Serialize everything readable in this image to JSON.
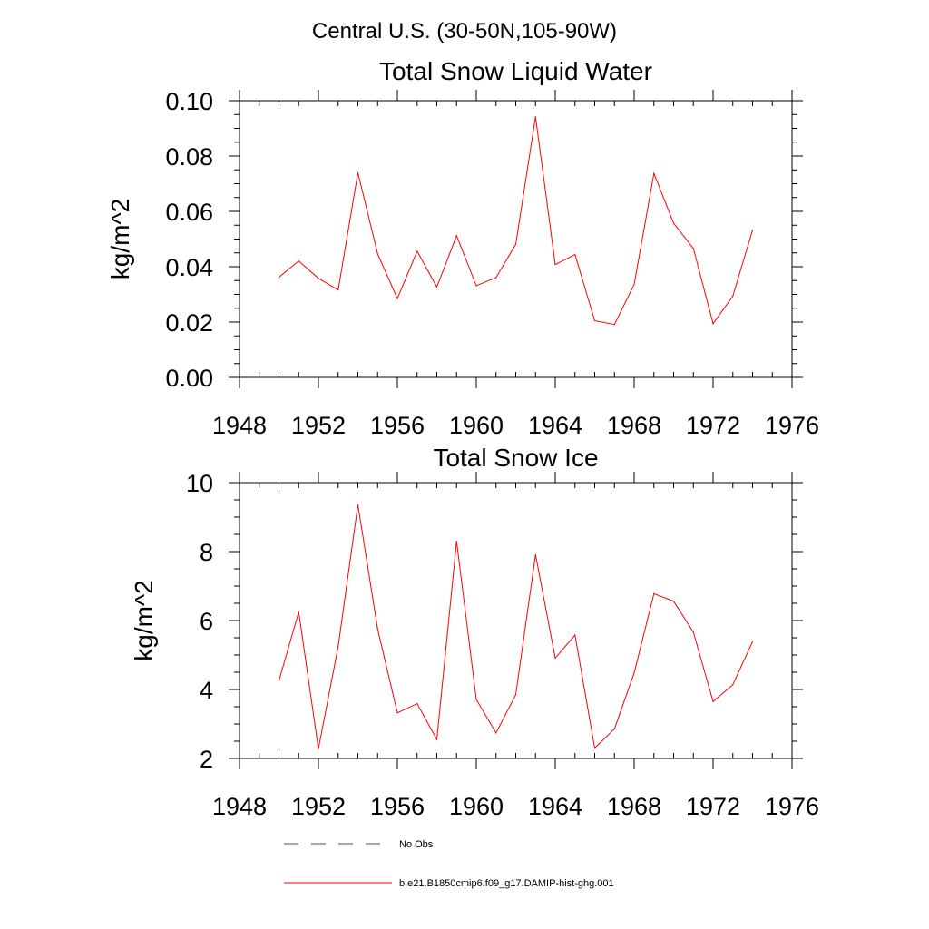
{
  "figure": {
    "main_title": "Central U.S. (30-50N,105-90W)"
  },
  "legend": {
    "items": [
      {
        "label": "No Obs",
        "style": "dashed",
        "color": "#4a4a7a"
      },
      {
        "label": "b.e21.B1850cmip6.f09_g17.DAMIP-hist-ghg.001",
        "style": "solid",
        "color": "#ff0000"
      }
    ]
  },
  "chart_data": [
    {
      "type": "line",
      "title": "Total Snow Liquid Water",
      "xlabel": "",
      "ylabel": "kg/m^2",
      "xlim": [
        1948,
        1976
      ],
      "ylim": [
        0.0,
        0.1
      ],
      "xticks": [
        1948,
        1952,
        1956,
        1960,
        1964,
        1968,
        1972,
        1976
      ],
      "xtick_labels": [
        "1948",
        "1952",
        "1956",
        "1960",
        "1964",
        "1968",
        "1972",
        "1976"
      ],
      "yticks": [
        0.0,
        0.02,
        0.04,
        0.06,
        0.08,
        0.1
      ],
      "ytick_labels": [
        "0.00",
        "0.02",
        "0.04",
        "0.06",
        "0.08",
        "0.10"
      ],
      "y_minor_step": 0.005,
      "x": [
        1950,
        1951,
        1952,
        1953,
        1954,
        1955,
        1956,
        1957,
        1958,
        1959,
        1960,
        1961,
        1962,
        1963,
        1964,
        1965,
        1966,
        1967,
        1968,
        1969,
        1970,
        1971,
        1972,
        1973,
        1974
      ],
      "series": [
        {
          "color": "#ff0000",
          "values": [
            0.0362,
            0.0421,
            0.0358,
            0.0316,
            0.074,
            0.0446,
            0.0285,
            0.0456,
            0.0327,
            0.0512,
            0.0331,
            0.0361,
            0.0481,
            0.0942,
            0.0408,
            0.0444,
            0.0205,
            0.0191,
            0.0336,
            0.0737,
            0.0557,
            0.0466,
            0.0194,
            0.0294,
            0.0532
          ]
        }
      ]
    },
    {
      "type": "line",
      "title": "Total Snow Ice",
      "xlabel": "",
      "ylabel": "kg/m^2",
      "xlim": [
        1948,
        1976
      ],
      "ylim": [
        2,
        10
      ],
      "xticks": [
        1948,
        1952,
        1956,
        1960,
        1964,
        1968,
        1972,
        1976
      ],
      "xtick_labels": [
        "1948",
        "1952",
        "1956",
        "1960",
        "1964",
        "1968",
        "1972",
        "1976"
      ],
      "yticks": [
        2,
        4,
        6,
        8,
        10
      ],
      "ytick_labels": [
        "2",
        "4",
        "6",
        "8",
        "10"
      ],
      "y_minor_step": 0.5,
      "x": [
        1950,
        1951,
        1952,
        1953,
        1954,
        1955,
        1956,
        1957,
        1958,
        1959,
        1960,
        1961,
        1962,
        1963,
        1964,
        1965,
        1966,
        1967,
        1968,
        1969,
        1970,
        1971,
        1972,
        1973,
        1974
      ],
      "series": [
        {
          "color": "#ff0000",
          "values": [
            4.25,
            6.25,
            2.28,
            5.25,
            9.36,
            5.75,
            3.32,
            3.59,
            2.55,
            8.3,
            3.71,
            2.74,
            3.85,
            7.91,
            4.91,
            5.58,
            2.3,
            2.86,
            4.48,
            6.78,
            6.56,
            5.66,
            3.65,
            4.14,
            5.39
          ]
        }
      ]
    }
  ]
}
